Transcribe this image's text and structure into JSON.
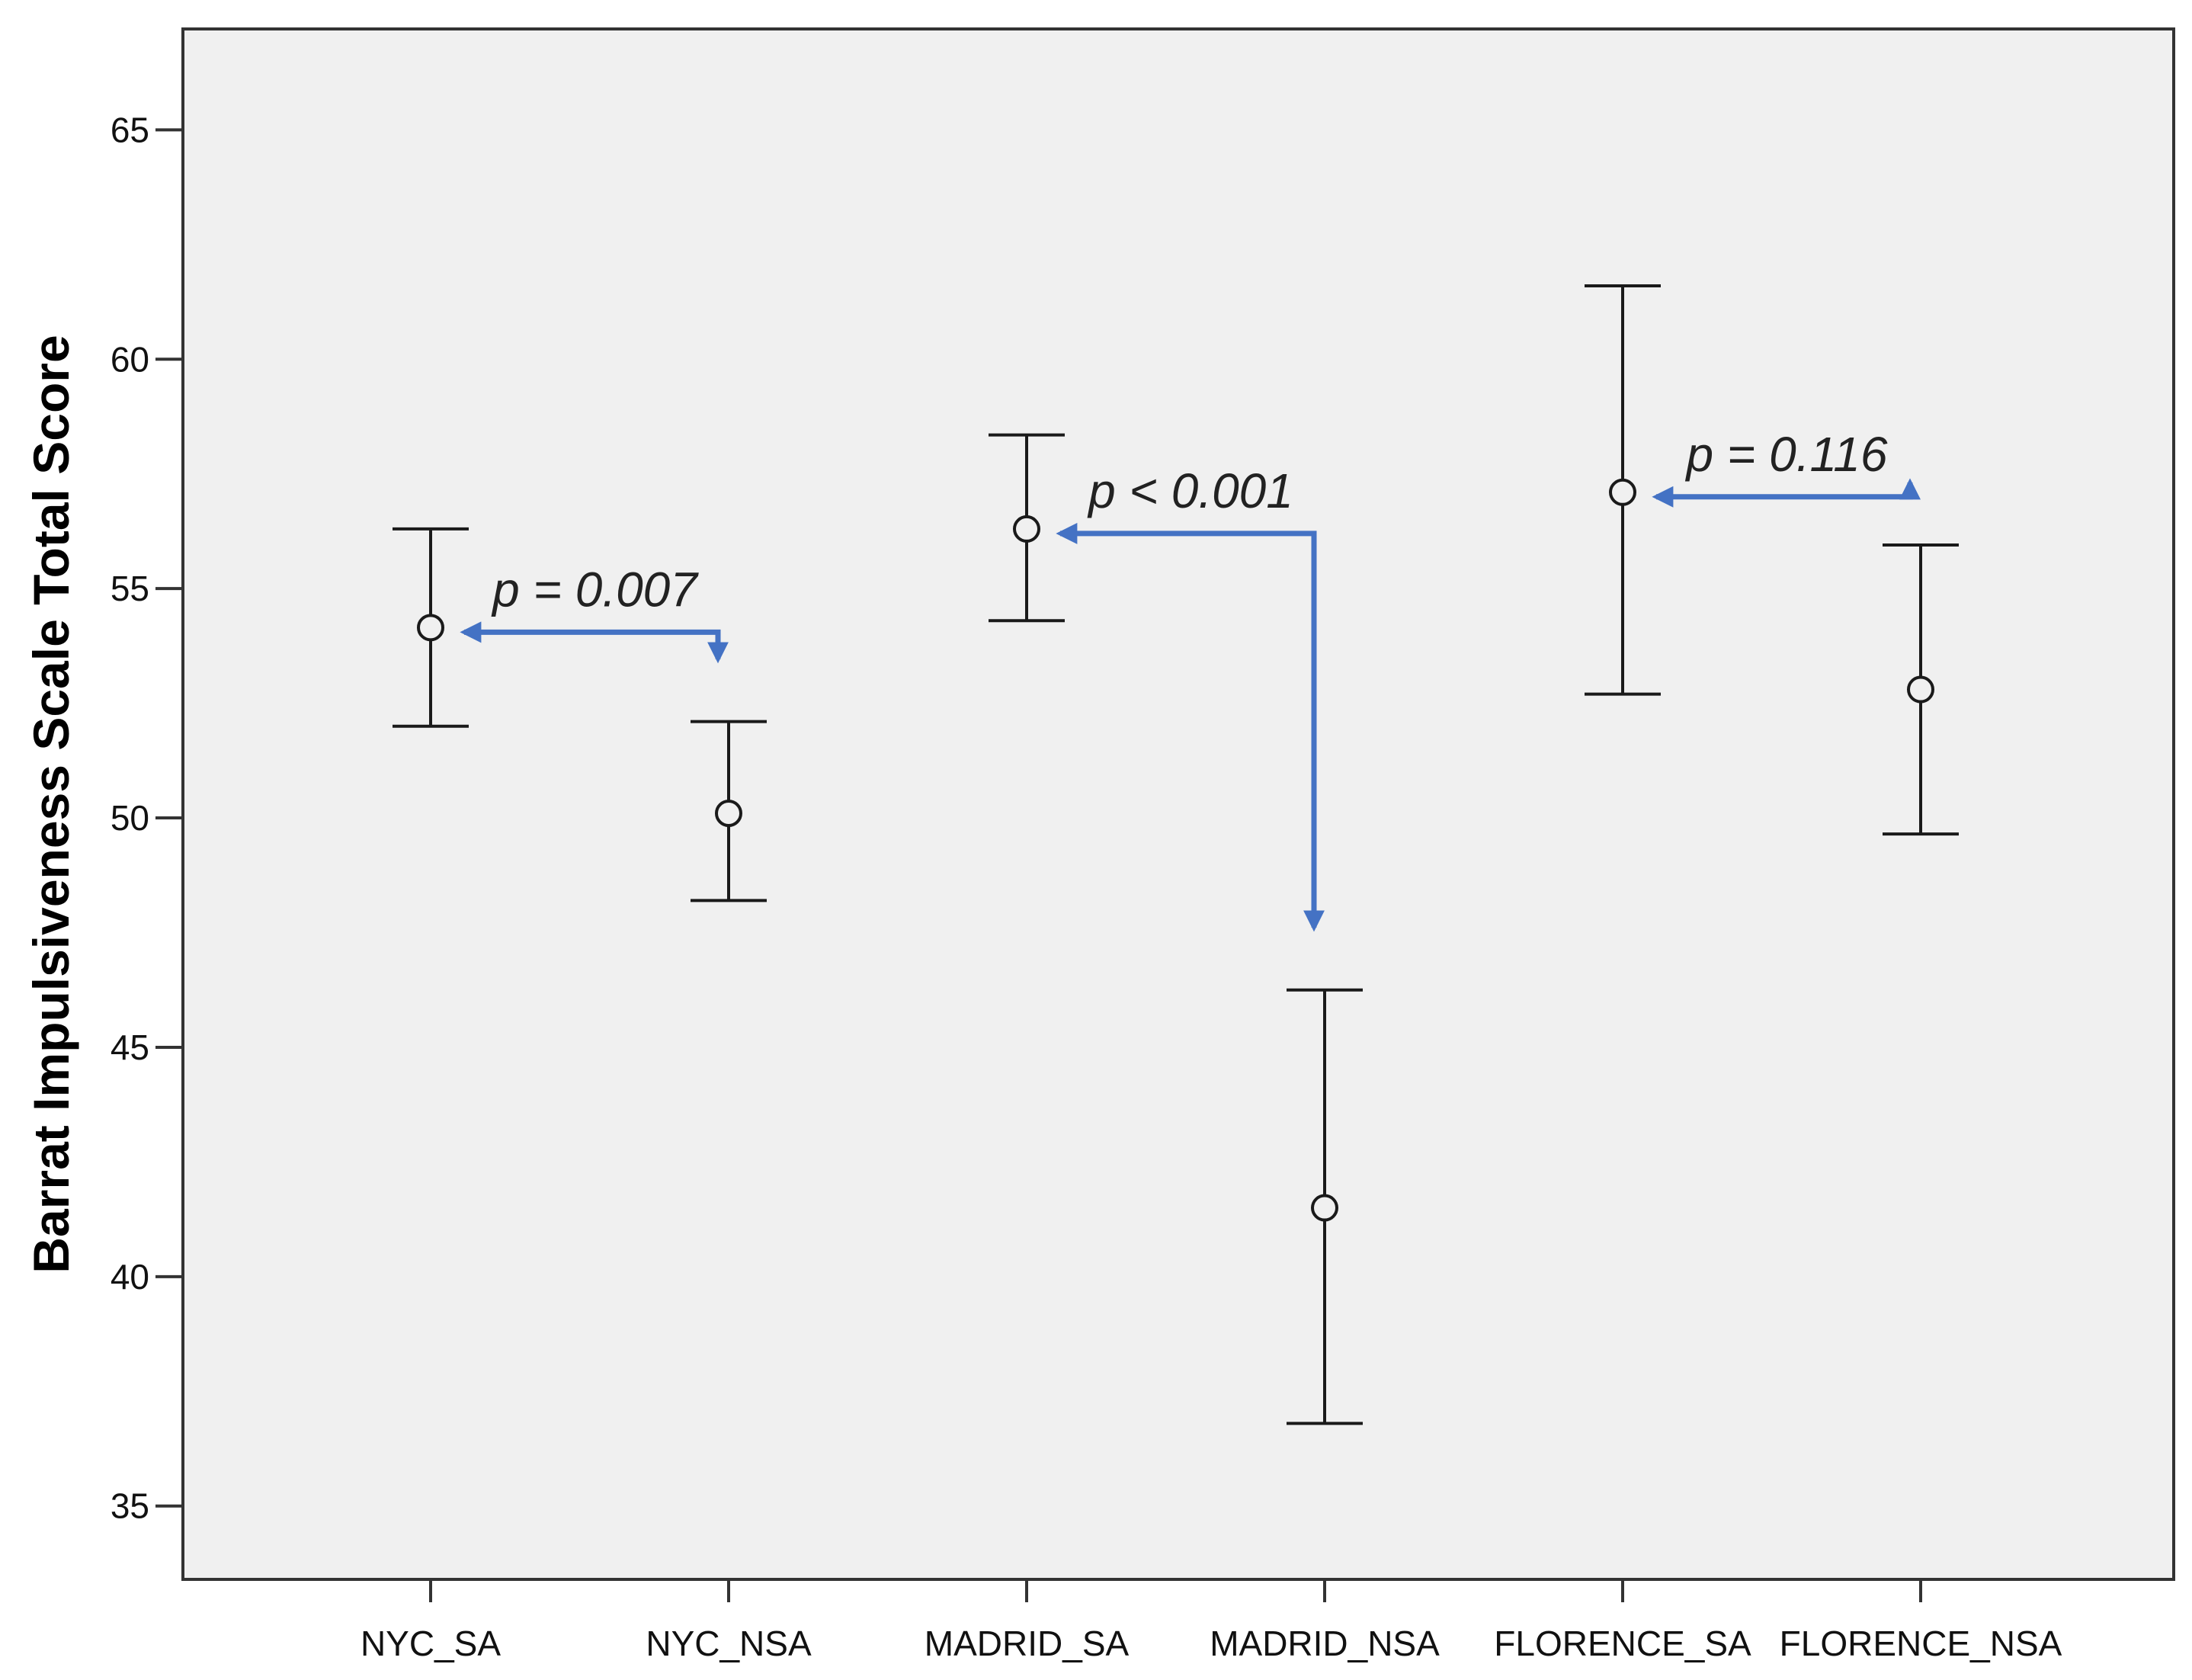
{
  "chart_data": {
    "type": "errorbar",
    "ylabel": "Barrat Impulsiveness Scale Total Score",
    "xlabel": "",
    "ylim": [
      33.4,
      67.2
    ],
    "yticks": [
      35,
      40,
      45,
      50,
      55,
      60,
      65
    ],
    "grid": false,
    "categories": [
      "NYC_SA",
      "NYC_NSA",
      "MADRID_SA",
      "MADRID_NSA",
      "FLORENCE_SA",
      "FLORENCE_NSA"
    ],
    "means": [
      54.15,
      50.1,
      56.3,
      41.5,
      57.1,
      52.8
    ],
    "lower": [
      52.0,
      48.2,
      54.3,
      36.8,
      52.7,
      49.65
    ],
    "upper": [
      56.3,
      52.1,
      58.35,
      46.25,
      61.6,
      55.95
    ],
    "comparisons": [
      {
        "from": "NYC_NSA",
        "to": "NYC_SA",
        "label": "p = 0.007"
      },
      {
        "from": "MADRID_NSA",
        "to": "MADRID_SA",
        "label": "p < 0.001"
      },
      {
        "from": "FLORENCE_NSA",
        "to": "FLORENCE_SA",
        "label": "p = 0.116"
      }
    ],
    "colors": {
      "plot_background": "#f0f0f0",
      "errorbar": "#1a1a1a",
      "arrow": "#4472c4"
    }
  }
}
